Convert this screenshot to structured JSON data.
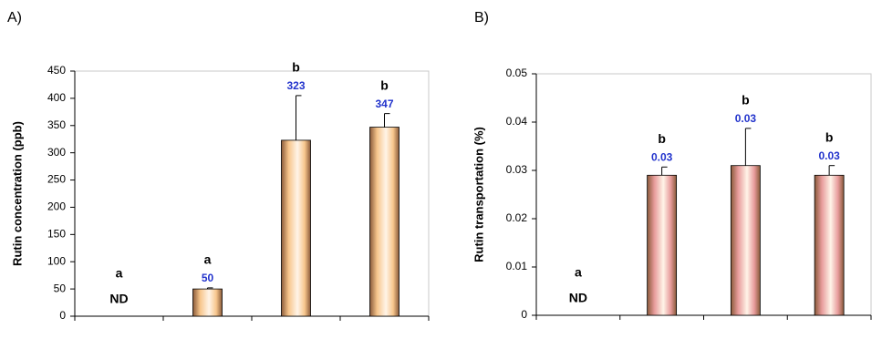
{
  "chart_data": [
    {
      "type": "bar",
      "panel": "A)",
      "ylabel": "Rutin concentration (ppb)",
      "categories": [
        null,
        null,
        null,
        null
      ],
      "values": [
        null,
        50,
        323,
        347
      ],
      "errors": [
        null,
        2,
        82,
        25
      ],
      "value_labels": [
        "ND",
        "50",
        "323",
        "347"
      ],
      "letters": [
        "a",
        "a",
        "b",
        "b"
      ],
      "color": "#f7c68c",
      "ylim": [
        0,
        450
      ],
      "yticks": [
        0,
        50,
        100,
        150,
        200,
        250,
        300,
        350,
        400,
        450
      ]
    },
    {
      "type": "bar",
      "panel": "B)",
      "ylabel": "Rutin transportation (%)",
      "categories": [
        null,
        null,
        null,
        null
      ],
      "values": [
        null,
        0.029,
        0.031,
        0.029
      ],
      "errors": [
        null,
        0.0017,
        0.0077,
        0.002
      ],
      "value_labels": [
        "ND",
        "0.03",
        "0.03",
        "0.03"
      ],
      "letters": [
        "a",
        "b",
        "b",
        "b"
      ],
      "color": "#e89c9c",
      "ylim": [
        0,
        0.05
      ],
      "yticks": [
        0,
        0.01,
        0.02,
        0.03,
        0.04,
        0.05
      ]
    }
  ]
}
